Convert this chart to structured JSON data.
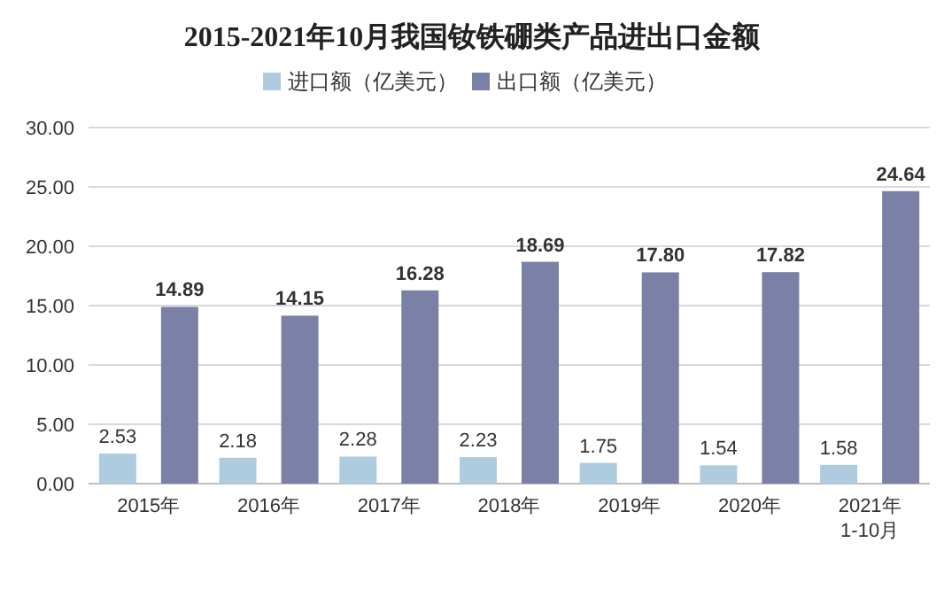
{
  "chart_data": {
    "type": "bar",
    "title": "2015-2021年10月我国钕铁硼类产品进出口金额",
    "categories": [
      "2015年",
      "2016年",
      "2017年",
      "2018年",
      "2019年",
      "2020年",
      "2021年\n1-10月"
    ],
    "series": [
      {
        "name": "进口额（亿美元）",
        "color": "#aecbe0",
        "values": [
          2.53,
          2.18,
          2.28,
          2.23,
          1.75,
          1.54,
          1.58
        ]
      },
      {
        "name": "出口额（亿美元）",
        "color": "#7a80a6",
        "values": [
          14.89,
          14.15,
          16.28,
          18.69,
          17.8,
          17.82,
          24.64
        ]
      }
    ],
    "value_labels": [
      [
        "2.53",
        "2.18",
        "2.28",
        "2.23",
        "1.75",
        "1.54",
        "1.58"
      ],
      [
        "14.89",
        "14.15",
        "16.28",
        "18.69",
        "17.80",
        "17.82",
        "24.64"
      ]
    ],
    "ylim": [
      0,
      30
    ],
    "yticks": [
      {
        "value": 0,
        "label": "0.00"
      },
      {
        "value": 5,
        "label": "5.00"
      },
      {
        "value": 10,
        "label": "10.00"
      },
      {
        "value": 15,
        "label": "15.00"
      },
      {
        "value": 20,
        "label": "20.00"
      },
      {
        "value": 25,
        "label": "25.00"
      },
      {
        "value": 30,
        "label": "30.00"
      }
    ],
    "grid": "y",
    "legend": "top"
  }
}
